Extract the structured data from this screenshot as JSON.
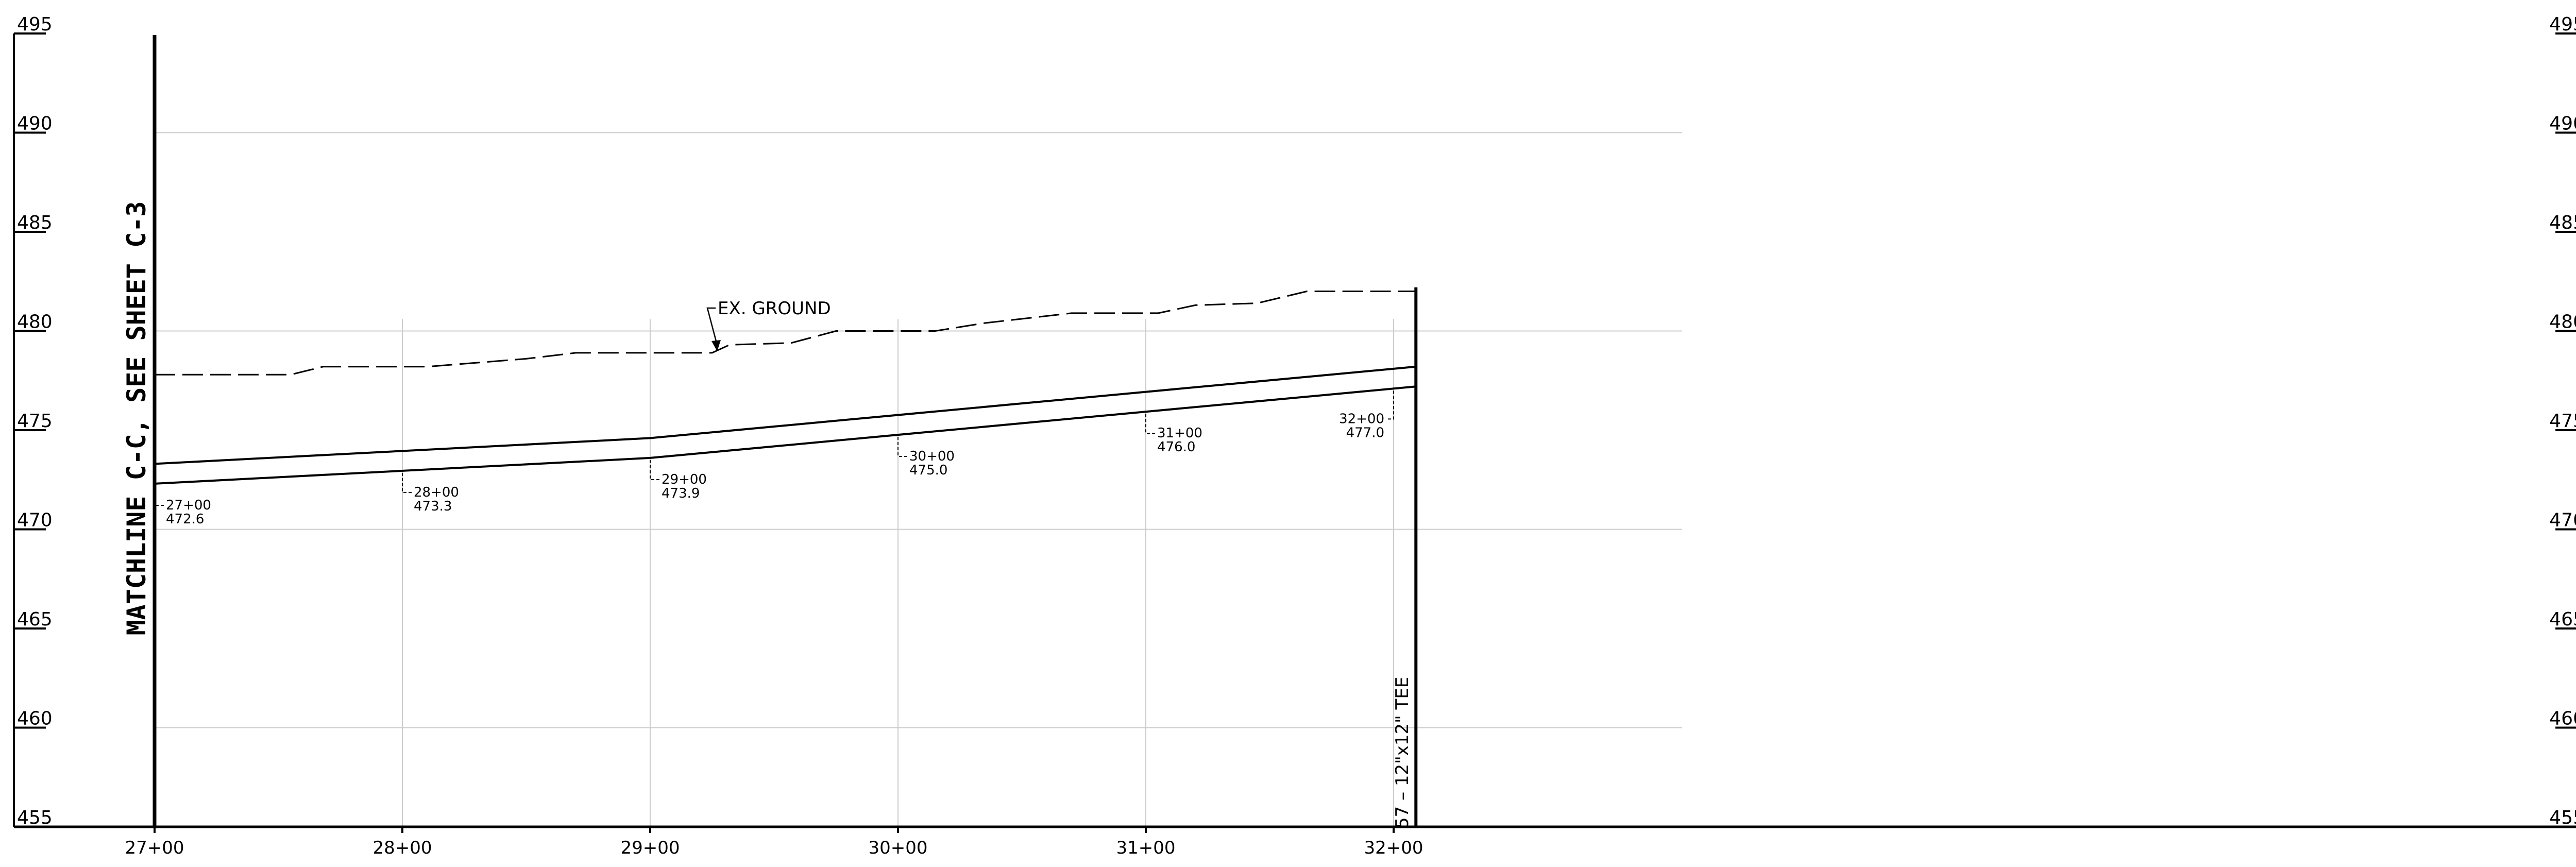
{
  "elevation_axis": {
    "ticks": [
      "495",
      "490",
      "485",
      "480",
      "475",
      "470",
      "465",
      "460",
      "455"
    ],
    "values": [
      495,
      490,
      485,
      480,
      475,
      470,
      465,
      460,
      455
    ],
    "range": [
      455,
      495
    ]
  },
  "station_axis": {
    "ticks": [
      "27+00",
      "28+00",
      "29+00",
      "30+00",
      "31+00",
      "32+00"
    ],
    "values": [
      2700,
      2800,
      2900,
      3000,
      3100,
      3200
    ]
  },
  "matchline_label": "MATCHLINE C-C, SEE SHEET C-3",
  "ground_label": "EX. GROUND",
  "tee_label": "57 – 12\"x12\" TEE",
  "station_callouts": [
    {
      "station": "27+00",
      "elevation": "472.6"
    },
    {
      "station": "28+00",
      "elevation": "473.3"
    },
    {
      "station": "29+00",
      "elevation": "473.9"
    },
    {
      "station": "30+00",
      "elevation": "475.0"
    },
    {
      "station": "31+00",
      "elevation": "476.0"
    },
    {
      "station": "32+00",
      "elevation": "477.0"
    }
  ],
  "existing_ground": [
    {
      "station": 2700,
      "elevation": 477.8
    },
    {
      "station": 2755,
      "elevation": 477.8
    },
    {
      "station": 2768,
      "elevation": 478.2
    },
    {
      "station": 2810,
      "elevation": 478.2
    },
    {
      "station": 2850,
      "elevation": 478.6
    },
    {
      "station": 2870,
      "elevation": 478.9
    },
    {
      "station": 2925,
      "elevation": 478.9
    },
    {
      "station": 2932,
      "elevation": 479.3
    },
    {
      "station": 2957,
      "elevation": 479.4
    },
    {
      "station": 2975,
      "elevation": 480.0
    },
    {
      "station": 3015,
      "elevation": 480.0
    },
    {
      "station": 3035,
      "elevation": 480.4
    },
    {
      "station": 3070,
      "elevation": 480.9
    },
    {
      "station": 3105,
      "elevation": 480.9
    },
    {
      "station": 3120,
      "elevation": 481.3
    },
    {
      "station": 3145,
      "elevation": 481.4
    },
    {
      "station": 3165,
      "elevation": 482.0
    },
    {
      "station": 3209,
      "elevation": 482.0
    }
  ],
  "pipe_invert": [
    {
      "station": 2700,
      "elevation": 472.3
    },
    {
      "station": 2900,
      "elevation": 473.6
    },
    {
      "station": 3209,
      "elevation": 477.2
    }
  ],
  "pipe_crown": [
    {
      "station": 2700,
      "elevation": 473.3
    },
    {
      "station": 2900,
      "elevation": 474.6
    },
    {
      "station": 3209,
      "elevation": 478.2
    }
  ]
}
